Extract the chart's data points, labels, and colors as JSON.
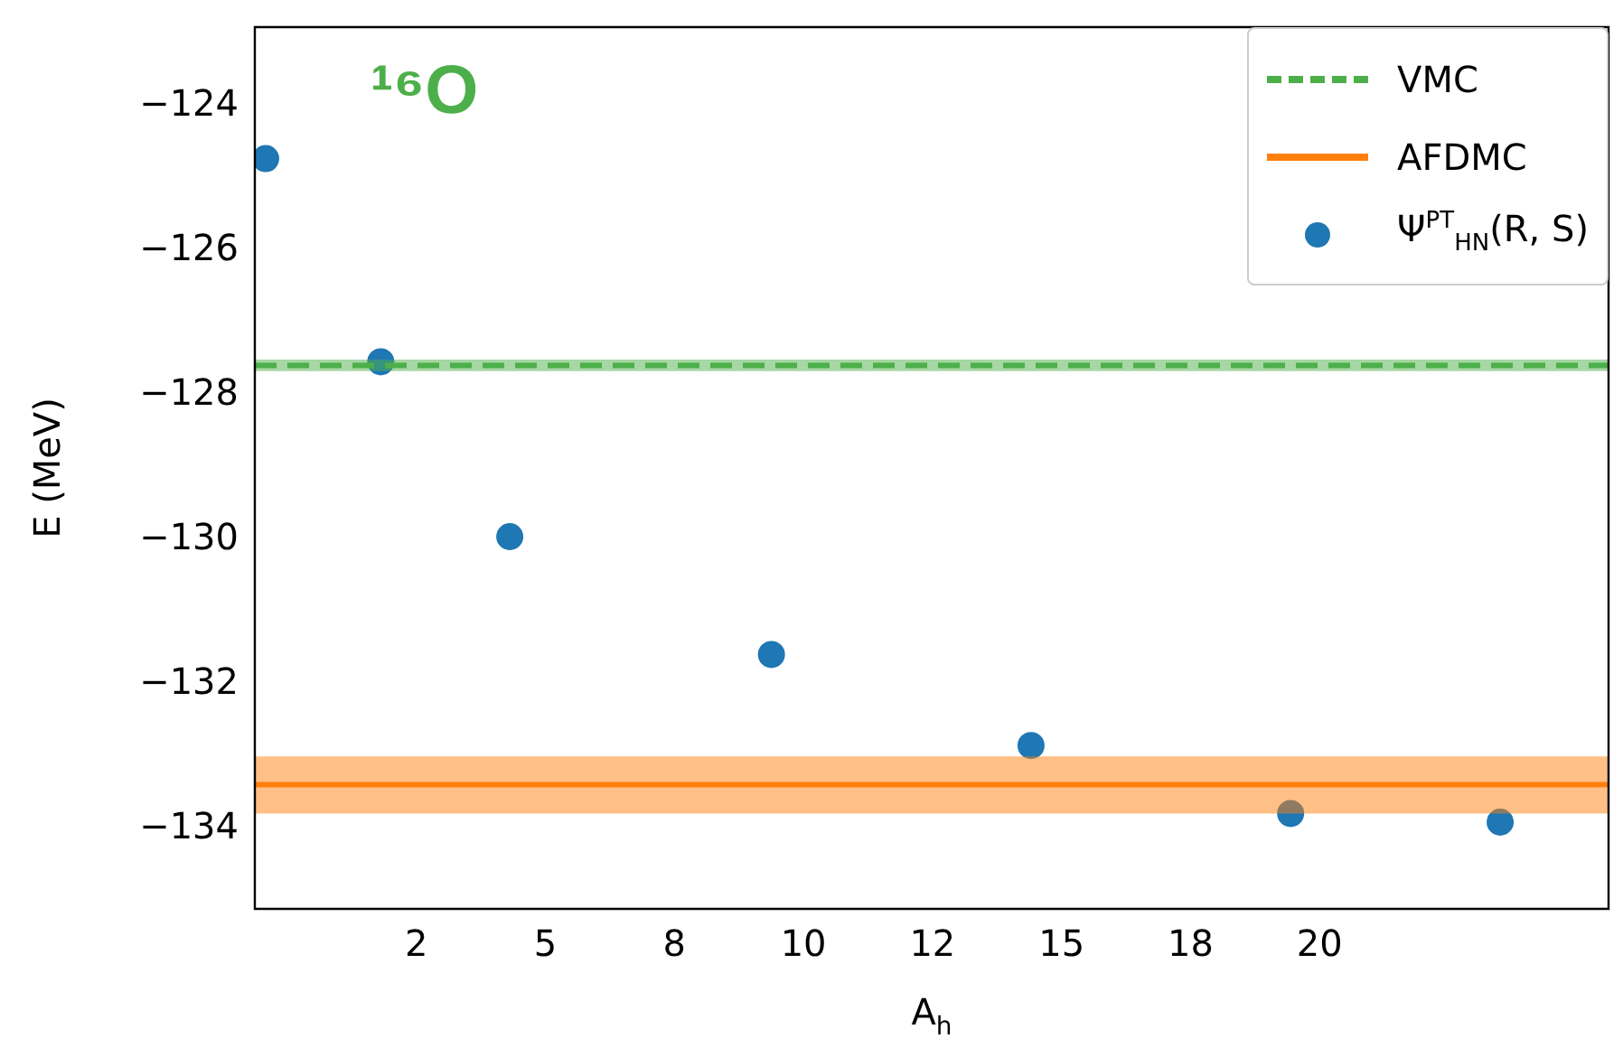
{
  "chart_data": {
    "type": "scatter",
    "xlabel": "A$_{h}$",
    "ylabel": "E (MeV)",
    "annotations": [
      "¹⁶O"
    ],
    "xlim": [
      -0.63,
      25.6
    ],
    "ylim": [
      -135.1,
      -122.9
    ],
    "xticks": [
      {
        "value": 2.5,
        "label": "2"
      },
      5,
      {
        "value": 7.5,
        "label": "8"
      },
      10,
      {
        "value": 12.5,
        "label": "12"
      },
      15,
      {
        "value": 17.5,
        "label": "18"
      },
      20
    ],
    "yticks": [
      -134,
      -132,
      -130,
      -128,
      -126,
      -124
    ],
    "grid": false,
    "legend": "top right",
    "series": [
      {
        "name": "VMC",
        "type": "line",
        "line_style": "dashed",
        "color": "#4daf4a",
        "x": [
          -0.63,
          25.6
        ],
        "values": [
          -127.58,
          -127.58
        ],
        "lower": [
          -127.66,
          -127.66
        ],
        "upper": [
          -127.5,
          -127.5
        ]
      },
      {
        "name": "AFDMC",
        "type": "line",
        "line_style": "solid",
        "color": "#ff7f0e",
        "x": [
          -0.63,
          25.6
        ],
        "values": [
          -133.38,
          -133.38
        ],
        "lower": [
          -133.78,
          -133.78
        ],
        "upper": [
          -132.99,
          -132.99
        ]
      },
      {
        "name": "Ψ$^{PT}$$_{HN}$(R, S)",
        "type": "scatter",
        "marker": "circle",
        "color": "#1f77b4",
        "x": [
          -0.42,
          1.81,
          4.31,
          9.38,
          14.41,
          19.44,
          23.5
        ],
        "values": [
          -124.72,
          -127.53,
          -129.95,
          -131.58,
          -132.84,
          -133.78,
          -133.9
        ]
      }
    ]
  }
}
